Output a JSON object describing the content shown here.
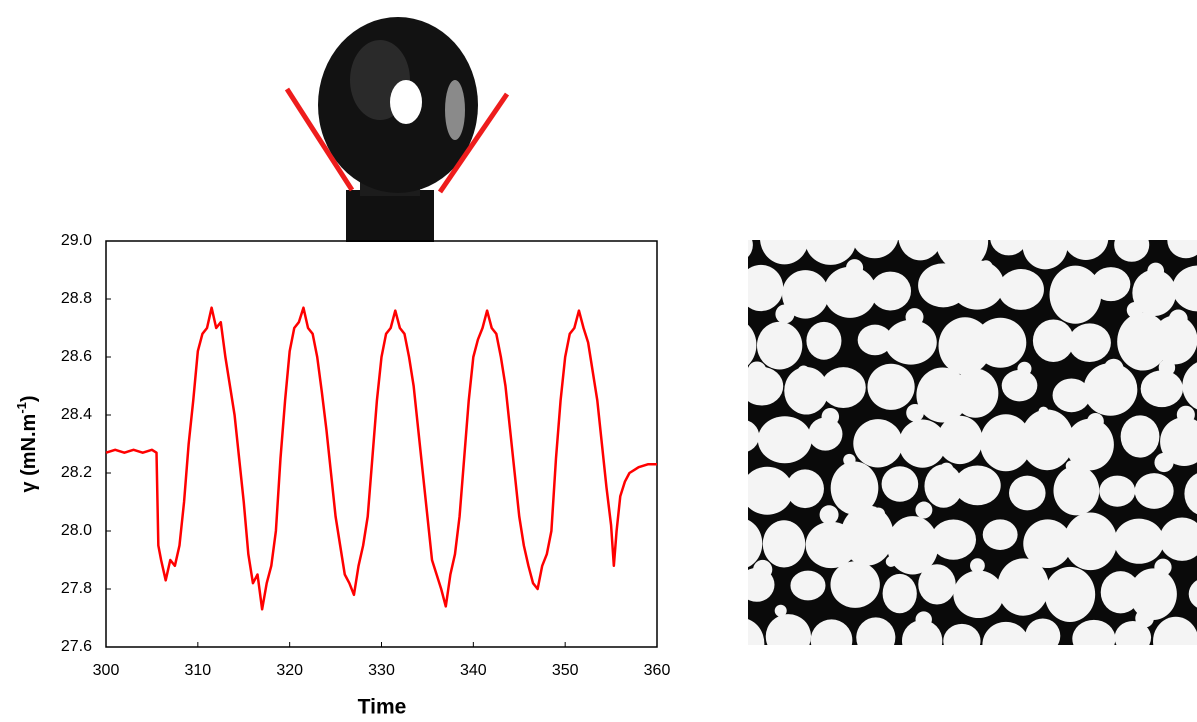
{
  "chart_data": {
    "type": "line",
    "x_label": "Time",
    "y_label_parts": [
      "γ (mN.m",
      "-1",
      ")"
    ],
    "xlim": [
      300,
      360
    ],
    "xticks": [
      300,
      310,
      320,
      330,
      340,
      350,
      360
    ],
    "ylim": [
      27.6,
      29.0
    ],
    "yticks": [
      {
        "value": 27.6,
        "label": "27.6"
      },
      {
        "value": 27.8,
        "label": "27.8"
      },
      {
        "value": 28.0,
        "label": "28.0"
      },
      {
        "value": 28.2,
        "label": "28.2"
      },
      {
        "value": 28.4,
        "label": "28.4"
      },
      {
        "value": 28.6,
        "label": "28.6"
      },
      {
        "value": 28.8,
        "label": "28.8"
      },
      {
        "value": 29.0,
        "label": "29.0"
      }
    ],
    "series": [
      {
        "color": "#ff0000",
        "x": [
          300,
          301,
          302,
          303,
          304,
          305,
          305.5,
          305.7,
          306,
          306.5,
          307,
          307.5,
          308,
          308.5,
          309,
          309.5,
          310,
          310.5,
          311,
          311.5,
          312,
          312.5,
          313,
          313.5,
          314,
          314.5,
          315,
          315.5,
          316,
          316.5,
          317,
          317.5,
          318,
          318.5,
          319,
          319.5,
          320,
          320.5,
          321,
          321.5,
          322,
          322.5,
          323,
          323.5,
          324,
          324.5,
          325,
          325.5,
          326,
          326.5,
          327,
          327.5,
          328,
          328.5,
          329,
          329.5,
          330,
          330.5,
          331,
          331.5,
          332,
          332.5,
          333,
          333.5,
          334,
          334.5,
          335,
          335.5,
          336,
          336.5,
          337,
          337.5,
          338,
          338.5,
          339,
          339.5,
          340,
          340.5,
          341,
          341.5,
          342,
          342.5,
          343,
          343.5,
          344,
          344.5,
          345,
          345.5,
          346,
          346.5,
          347,
          347.5,
          348,
          348.5,
          349,
          349.5,
          350,
          350.5,
          351,
          351.5,
          352,
          352.5,
          353,
          353.5,
          354,
          354.5,
          355,
          355.3,
          355.6,
          356,
          356.5,
          357,
          358,
          359,
          360
        ],
        "values": [
          28.27,
          28.28,
          28.27,
          28.28,
          28.27,
          28.28,
          28.27,
          27.95,
          27.9,
          27.83,
          27.9,
          27.88,
          27.95,
          28.1,
          28.3,
          28.45,
          28.62,
          28.68,
          28.7,
          28.77,
          28.7,
          28.72,
          28.6,
          28.5,
          28.4,
          28.25,
          28.1,
          27.92,
          27.82,
          27.85,
          27.73,
          27.82,
          27.88,
          28.0,
          28.25,
          28.45,
          28.62,
          28.7,
          28.72,
          28.77,
          28.7,
          28.68,
          28.6,
          28.48,
          28.35,
          28.2,
          28.05,
          27.95,
          27.85,
          27.82,
          27.78,
          27.88,
          27.95,
          28.05,
          28.25,
          28.45,
          28.6,
          28.68,
          28.7,
          28.76,
          28.7,
          28.68,
          28.6,
          28.5,
          28.35,
          28.2,
          28.05,
          27.9,
          27.85,
          27.8,
          27.74,
          27.85,
          27.92,
          28.05,
          28.25,
          28.45,
          28.6,
          28.66,
          28.7,
          28.76,
          28.7,
          28.68,
          28.6,
          28.5,
          28.35,
          28.2,
          28.05,
          27.95,
          27.88,
          27.82,
          27.8,
          27.88,
          27.92,
          28.0,
          28.25,
          28.45,
          28.6,
          28.68,
          28.7,
          28.76,
          28.7,
          28.65,
          28.55,
          28.45,
          28.3,
          28.15,
          28.02,
          27.88,
          28.0,
          28.12,
          28.17,
          28.2,
          28.22,
          28.23,
          28.23
        ]
      }
    ]
  }
}
